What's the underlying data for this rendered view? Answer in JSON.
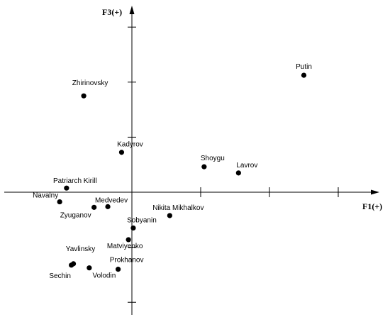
{
  "chart_data": {
    "type": "scatter",
    "title": "",
    "xlabel": "F1(+)",
    "ylabel": "F3(+)",
    "xlim": [
      -1.9,
      3.6
    ],
    "ylim": [
      -1.7,
      2.7
    ],
    "grid": false,
    "legend": "none",
    "colors": {
      "axis": "#000000",
      "point": "#000000",
      "background": "#ffffff"
    },
    "points": [
      {
        "label": "Putin",
        "x": 2.5,
        "y": 1.7
      },
      {
        "label": "Zhirinovsky",
        "x": -0.7,
        "y": 1.4
      },
      {
        "label": "Kadyrov",
        "x": -0.15,
        "y": 0.58
      },
      {
        "label": "Shoygu",
        "x": 1.05,
        "y": 0.37
      },
      {
        "label": "Lavrov",
        "x": 1.55,
        "y": 0.28
      },
      {
        "label": "Patriarch Kirill",
        "x": -0.95,
        "y": 0.06
      },
      {
        "label": "Navalny",
        "x": -1.05,
        "y": -0.14
      },
      {
        "label": "Medvedev",
        "x": -0.35,
        "y": -0.21
      },
      {
        "label": "Zyuganov",
        "x": -0.55,
        "y": -0.22
      },
      {
        "label": "Nikita Mikhalkov",
        "x": 0.55,
        "y": -0.34
      },
      {
        "label": "Sobyanin",
        "x": 0.02,
        "y": -0.52
      },
      {
        "label": "Matviyenko",
        "x": -0.05,
        "y": -0.69
      },
      {
        "label": "Yavlinsky",
        "x": -0.85,
        "y": -1.04
      },
      {
        "label": "Sechin",
        "x": -0.88,
        "y": -1.06
      },
      {
        "label": "Volodin",
        "x": -0.62,
        "y": -1.1
      },
      {
        "label": "Prokhanov",
        "x": -0.2,
        "y": -1.12
      }
    ]
  }
}
